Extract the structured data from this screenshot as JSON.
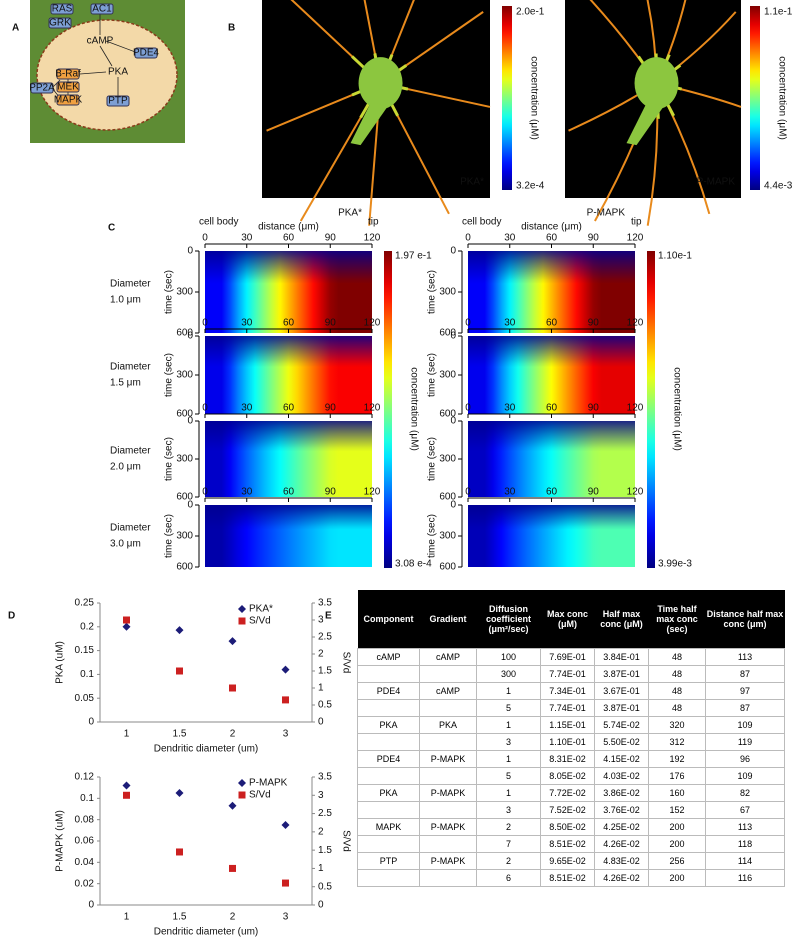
{
  "panel_labels": [
    "A",
    "B",
    "C",
    "D",
    "E"
  ],
  "panel_a": {
    "nodes": [
      "RAS",
      "AC1",
      "GRK",
      "cAMP",
      "PDE4",
      "PKA",
      "B-Raf",
      "MEK",
      "MAPK",
      "PTP",
      "PP2A"
    ]
  },
  "panel_b": {
    "images": [
      {
        "label": "PKA*",
        "max": "2.0e-1",
        "min": "3.2e-4",
        "colorbar_title": "concentration (μM)"
      },
      {
        "label": "P-MAPK",
        "max": "1.1e-1",
        "min": "4.4e-3",
        "colorbar_title": "concentration (μM)"
      }
    ]
  },
  "panel_c": {
    "columns": [
      {
        "title": "PKA*",
        "max": "1.97 e-1",
        "min": "3.08 e-4"
      },
      {
        "title": "P-MAPK",
        "max": "1.10e-1",
        "min": "3.99e-3"
      }
    ],
    "colorbar_title": "concentration (μM)",
    "x_label": "distance (μm)",
    "x_start_label": "cell body",
    "x_end_label": "tip",
    "y_label": "time (sec)",
    "xlim": [
      0,
      120
    ],
    "xticks": [
      0,
      30,
      60,
      90,
      120
    ],
    "ylim": [
      0,
      600
    ],
    "yticks": [
      0,
      300,
      600
    ],
    "rows": [
      {
        "label": "Diameter",
        "size": "1.0 μm"
      },
      {
        "label": "Diameter",
        "size": "1.5 μm"
      },
      {
        "label": "Diameter",
        "size": "2.0 μm"
      },
      {
        "label": "Diameter",
        "size": "3.0 μm"
      }
    ]
  },
  "panel_d": {
    "charts": [
      {
        "type": "scatter",
        "x_label": "Dendritic diameter (um)",
        "y_label": "PKA (uM)",
        "y2_label": "S/Vd",
        "categories": [
          "1",
          "1.5",
          "2",
          "3"
        ],
        "ylim": [
          0,
          0.25
        ],
        "yticks": [
          0,
          0.05,
          0.1,
          0.15,
          0.2,
          0.25
        ],
        "y2lim": [
          0,
          3.5
        ],
        "y2ticks": [
          0,
          0.5,
          1,
          1.5,
          2,
          2.5,
          3,
          3.5
        ],
        "legend": "upper right",
        "series": [
          {
            "name": "PKA*",
            "color": "#1c1c78",
            "marker": "diamond",
            "values": [
              0.2,
              0.193,
              0.17,
              0.11
            ]
          },
          {
            "name": "S/Vd",
            "color": "#cc2020",
            "marker": "square",
            "axis": "y2",
            "values": [
              3,
              1.5,
              1.0,
              0.65
            ]
          }
        ]
      },
      {
        "type": "scatter",
        "x_label": "Dendritic diameter (um)",
        "y_label": "P-MAPK (uM)",
        "y2_label": "S/Vd",
        "categories": [
          "1",
          "1.5",
          "2",
          "3"
        ],
        "ylim": [
          0,
          0.12
        ],
        "yticks": [
          0,
          0.02,
          0.04,
          0.06,
          0.08,
          0.1,
          0.12
        ],
        "y2lim": [
          0,
          3.5
        ],
        "y2ticks": [
          0,
          0.5,
          1,
          1.5,
          2,
          2.5,
          3,
          3.5
        ],
        "legend": "upper right",
        "series": [
          {
            "name": "P-MAPK",
            "color": "#1c1c78",
            "marker": "diamond",
            "values": [
              0.112,
              0.105,
              0.093,
              0.075
            ]
          },
          {
            "name": "S/Vd",
            "color": "#cc2020",
            "marker": "square",
            "axis": "y2",
            "values": [
              3,
              1.45,
              1.0,
              0.6
            ]
          }
        ]
      }
    ]
  },
  "panel_e": {
    "table": {
      "header": [
        "Component",
        "Gradient",
        "Diffusion coefficient (μm²/sec)",
        "Max conc (μM)",
        "Half max conc (μM)",
        "Time half max conc (sec)",
        "Distance half max conc (μm)"
      ],
      "rows": [
        [
          "cAMP",
          "cAMP",
          "100",
          "7.69E-01",
          "3.84E-01",
          "48",
          "113"
        ],
        [
          null,
          null,
          "300",
          "7.74E-01",
          "3.87E-01",
          "48",
          "87"
        ],
        [
          "PDE4",
          "cAMP",
          "1",
          "7.34E-01",
          "3.67E-01",
          "48",
          "97"
        ],
        [
          null,
          null,
          "5",
          "7.74E-01",
          "3.87E-01",
          "48",
          "87"
        ],
        [
          "PKA",
          "PKA",
          "1",
          "1.15E-01",
          "5.74E-02",
          "320",
          "109"
        ],
        [
          null,
          null,
          "3",
          "1.10E-01",
          "5.50E-02",
          "312",
          "119"
        ],
        [
          "PDE4",
          "P-MAPK",
          "1",
          "8.31E-02",
          "4.15E-02",
          "192",
          "96"
        ],
        [
          null,
          null,
          "5",
          "8.05E-02",
          "4.03E-02",
          "176",
          "109"
        ],
        [
          "PKA",
          "P-MAPK",
          "1",
          "7.72E-02",
          "3.86E-02",
          "160",
          "82"
        ],
        [
          null,
          null,
          "3",
          "7.52E-02",
          "3.76E-02",
          "152",
          "67"
        ],
        [
          "MAPK",
          "P-MAPK",
          "2",
          "8.50E-02",
          "4.25E-02",
          "200",
          "113"
        ],
        [
          null,
          null,
          "7",
          "8.51E-02",
          "4.26E-02",
          "200",
          "118"
        ],
        [
          "PTP",
          "P-MAPK",
          "2",
          "9.65E-02",
          "4.83E-02",
          "256",
          "114"
        ],
        [
          null,
          null,
          "6",
          "8.51E-02",
          "4.26E-02",
          "200",
          "116"
        ]
      ]
    }
  }
}
